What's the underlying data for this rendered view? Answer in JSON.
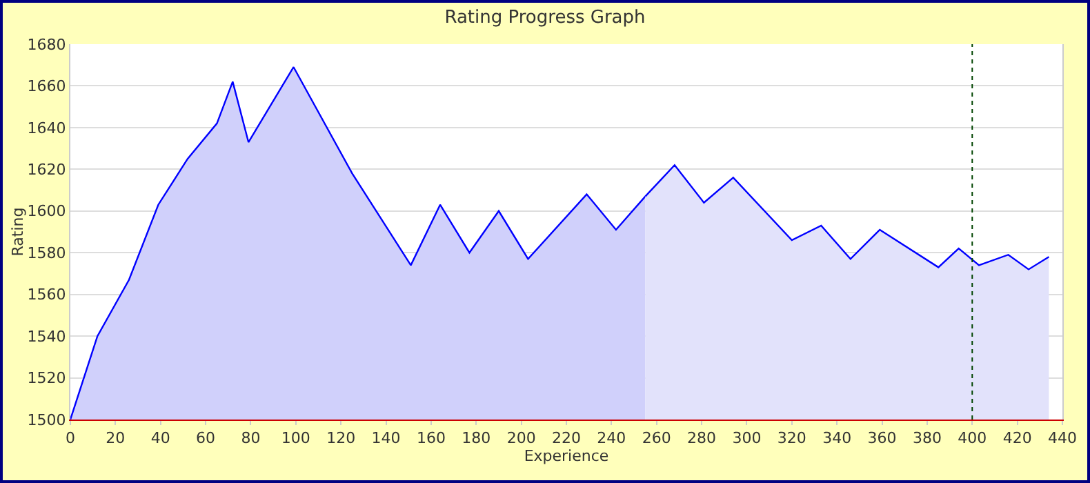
{
  "chart_data": {
    "type": "area",
    "title": "Rating Progress Graph",
    "xlabel": "Experience",
    "ylabel": "Rating",
    "series": [
      {
        "color": "#d0d0fb",
        "x": [
          0,
          12,
          26,
          39,
          52,
          65,
          72,
          79,
          99,
          125,
          151,
          164,
          177,
          190,
          203,
          229,
          242,
          255
        ],
        "values": [
          1500,
          1540,
          1567,
          1603,
          1625,
          1642,
          1662,
          1633,
          1669,
          1618,
          1574,
          1603,
          1580,
          1600,
          1577,
          1608,
          1591,
          1607
        ]
      },
      {
        "color": "#e2e2fb",
        "x": [
          255,
          268,
          281,
          294,
          320,
          333,
          346,
          359,
          385,
          394,
          403,
          416,
          425,
          434
        ],
        "values": [
          1607,
          1622,
          1604,
          1616,
          1586,
          1593,
          1577,
          1591,
          1573,
          1582,
          1574,
          1579,
          1572,
          1578
        ]
      }
    ],
    "xlim": [
      0,
      440
    ],
    "xticks": [
      0,
      20,
      40,
      60,
      80,
      100,
      120,
      140,
      160,
      180,
      200,
      220,
      240,
      260,
      280,
      300,
      320,
      340,
      360,
      380,
      400,
      420,
      440
    ],
    "ylim": [
      1500,
      1680
    ],
    "yticks": [
      1500,
      1520,
      1540,
      1560,
      1580,
      1600,
      1620,
      1640,
      1660,
      1680
    ],
    "grid": "y",
    "ref_lines": [
      {
        "axis": "x",
        "value": 400,
        "color": "#004400",
        "line_style": "dotted"
      }
    ]
  }
}
